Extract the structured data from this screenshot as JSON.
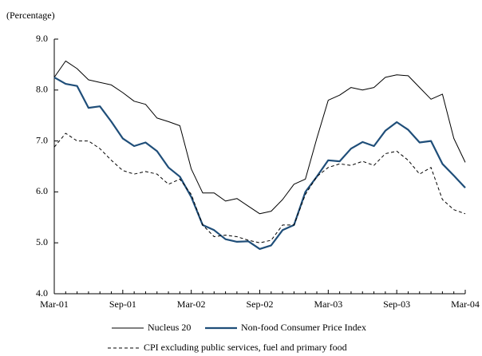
{
  "chart_data": {
    "type": "line",
    "y_label": "(Percentage)",
    "categories": [
      "Mar-01",
      null,
      null,
      null,
      null,
      null,
      "Sep-01",
      null,
      null,
      null,
      null,
      null,
      "Mar-02",
      null,
      null,
      null,
      null,
      null,
      "Sep-02",
      null,
      null,
      null,
      null,
      null,
      "Mar-03",
      null,
      null,
      null,
      null,
      null,
      "Sep-03",
      null,
      null,
      null,
      null,
      null,
      "Mar-04"
    ],
    "ylim": [
      4.0,
      9.0
    ],
    "yticks": [
      {
        "value": 4.0,
        "label": "4.0"
      },
      {
        "value": 5.0,
        "label": "5.0"
      },
      {
        "value": 6.0,
        "label": "6.0"
      },
      {
        "value": 7.0,
        "label": "7.0"
      },
      {
        "value": 8.0,
        "label": "8.0"
      },
      {
        "value": 9.0,
        "label": "9.0"
      }
    ],
    "series": [
      {
        "name": "Nucleus 20",
        "color": "#000000",
        "style": "thin",
        "values": [
          8.25,
          8.57,
          8.42,
          8.2,
          8.15,
          8.1,
          7.95,
          7.78,
          7.72,
          7.45,
          7.38,
          7.3,
          6.45,
          5.98,
          5.98,
          5.82,
          5.87,
          5.72,
          5.57,
          5.62,
          5.85,
          6.15,
          6.25,
          7.05,
          7.8,
          7.9,
          8.05,
          8.0,
          8.05,
          8.25,
          8.3,
          8.28,
          8.05,
          7.82,
          7.92,
          7.05,
          6.58
        ]
      },
      {
        "name": "Non-food Consumer Price Index",
        "color": "#1f4e79",
        "style": "thick",
        "values": [
          8.25,
          8.12,
          8.08,
          7.65,
          7.68,
          7.38,
          7.05,
          6.9,
          6.97,
          6.8,
          6.48,
          6.3,
          5.9,
          5.35,
          5.25,
          5.07,
          5.02,
          5.03,
          4.88,
          4.95,
          5.25,
          5.35,
          6.0,
          6.3,
          6.62,
          6.6,
          6.85,
          6.98,
          6.9,
          7.2,
          7.37,
          7.22,
          6.97,
          7.0,
          6.55,
          6.32,
          6.08
        ]
      },
      {
        "name": "CPI excluding public services, fuel and primary food",
        "color": "#000000",
        "style": "dashed",
        "values": [
          6.88,
          7.15,
          7.0,
          7.0,
          6.85,
          6.62,
          6.42,
          6.35,
          6.4,
          6.35,
          6.15,
          6.25,
          5.95,
          5.35,
          5.12,
          5.15,
          5.12,
          5.05,
          5.0,
          5.05,
          5.35,
          5.35,
          5.95,
          6.3,
          6.48,
          6.55,
          6.52,
          6.6,
          6.52,
          6.75,
          6.8,
          6.62,
          6.35,
          6.48,
          5.85,
          5.65,
          5.57
        ]
      }
    ]
  }
}
